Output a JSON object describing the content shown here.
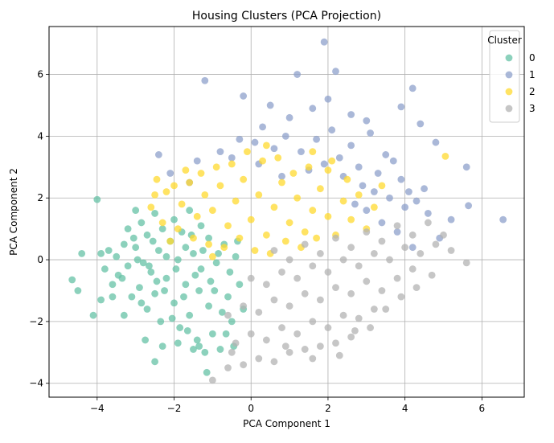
{
  "chart_data": {
    "type": "scatter",
    "title": "Housing Clusters (PCA Projection)",
    "xlabel": "PCA Component 1",
    "ylabel": "PCA Component 2",
    "xlim": [
      -5.25,
      7.1
    ],
    "ylim": [
      -4.45,
      7.55
    ],
    "xticks": [
      -4,
      -2,
      0,
      2,
      4,
      6
    ],
    "yticks": [
      -4,
      -2,
      0,
      2,
      4,
      6
    ],
    "xtick_labels": [
      "−4",
      "−2",
      "0",
      "2",
      "4",
      "6"
    ],
    "ytick_labels": [
      "−4",
      "−2",
      "0",
      "2",
      "4",
      "6"
    ],
    "grid": true,
    "legend": {
      "title": "Cluster",
      "placement": "top-right"
    },
    "series": [
      {
        "name": "0",
        "color": "#66c2a5",
        "points": [
          [
            -4.0,
            1.95
          ],
          [
            -4.65,
            -0.65
          ],
          [
            -4.4,
            0.2
          ],
          [
            -4.5,
            -1.0
          ],
          [
            -4.1,
            -1.8
          ],
          [
            -3.9,
            0.2
          ],
          [
            -3.8,
            -0.3
          ],
          [
            -3.7,
            0.3
          ],
          [
            -3.6,
            -0.8
          ],
          [
            -3.5,
            0.1
          ],
          [
            -3.45,
            -0.5
          ],
          [
            -3.3,
            0.5
          ],
          [
            -3.2,
            -0.2
          ],
          [
            -3.1,
            -1.2
          ],
          [
            -3.0,
            1.6
          ],
          [
            -3.0,
            0.4
          ],
          [
            -2.9,
            -0.9
          ],
          [
            -2.85,
            1.2
          ],
          [
            -2.8,
            -0.1
          ],
          [
            -2.7,
            -1.6
          ],
          [
            -2.7,
            0.8
          ],
          [
            -2.6,
            -0.4
          ],
          [
            -2.5,
            1.5
          ],
          [
            -2.5,
            -1.1
          ],
          [
            -2.4,
            0.3
          ],
          [
            -2.35,
            -2.0
          ],
          [
            -2.3,
            1.0
          ],
          [
            -2.2,
            -0.6
          ],
          [
            -2.1,
            0.6
          ],
          [
            -2.0,
            -1.4
          ],
          [
            -2.0,
            1.3
          ],
          [
            -1.9,
            0.0
          ],
          [
            -1.85,
            -2.2
          ],
          [
            -1.8,
            0.9
          ],
          [
            -1.7,
            -0.8
          ],
          [
            -1.6,
            1.6
          ],
          [
            -1.6,
            -1.8
          ],
          [
            -1.5,
            0.2
          ],
          [
            -1.4,
            -2.6
          ],
          [
            -1.3,
            1.1
          ],
          [
            -1.3,
            -0.3
          ],
          [
            -1.2,
            -3.0
          ],
          [
            -1.1,
            0.7
          ],
          [
            -1.1,
            -1.5
          ],
          [
            -1.0,
            -2.4
          ],
          [
            -0.9,
            -0.1
          ],
          [
            -0.8,
            -2.9
          ],
          [
            -0.7,
            0.5
          ],
          [
            -0.6,
            -1.2
          ],
          [
            -0.5,
            -2.0
          ],
          [
            -0.4,
            0.1
          ],
          [
            -0.3,
            -0.8
          ],
          [
            -0.2,
            -1.6
          ],
          [
            -2.75,
            -2.6
          ],
          [
            -2.3,
            -2.8
          ],
          [
            -2.5,
            -3.3
          ],
          [
            -1.9,
            -2.7
          ],
          [
            -1.15,
            -3.65
          ],
          [
            -3.3,
            -1.8
          ],
          [
            -3.6,
            -1.2
          ],
          [
            -3.9,
            -1.3
          ],
          [
            -3.2,
            1.0
          ],
          [
            -2.95,
            0.0
          ],
          [
            -2.65,
            -0.2
          ],
          [
            -2.45,
            -0.7
          ],
          [
            -2.2,
            0.1
          ],
          [
            -1.95,
            -0.3
          ],
          [
            -1.7,
            0.4
          ],
          [
            -1.45,
            -0.5
          ],
          [
            -1.25,
            0.3
          ],
          [
            -1.05,
            -0.7
          ],
          [
            -0.85,
            0.2
          ],
          [
            -3.35,
            -0.6
          ],
          [
            -3.05,
            0.7
          ],
          [
            -2.85,
            -1.4
          ],
          [
            -2.55,
            0.6
          ],
          [
            -2.25,
            -1.0
          ],
          [
            -1.75,
            -1.2
          ],
          [
            -1.55,
            0.8
          ],
          [
            -1.35,
            -1.0
          ],
          [
            -0.95,
            -1.0
          ],
          [
            -0.75,
            -1.7
          ],
          [
            -0.55,
            -0.4
          ],
          [
            -0.35,
            0.6
          ],
          [
            -2.05,
            -1.9
          ],
          [
            -1.65,
            -2.3
          ],
          [
            -1.5,
            -2.9
          ],
          [
            -1.35,
            -2.8
          ],
          [
            -0.65,
            -2.4
          ],
          [
            -0.45,
            -2.8
          ]
        ]
      },
      {
        "name": "1",
        "color": "#8da0cb",
        "points": [
          [
            -1.2,
            5.8
          ],
          [
            1.2,
            6.0
          ],
          [
            1.9,
            7.05
          ],
          [
            2.2,
            6.1
          ],
          [
            -0.2,
            5.3
          ],
          [
            0.5,
            5.0
          ],
          [
            1.6,
            4.9
          ],
          [
            2.6,
            4.7
          ],
          [
            3.0,
            4.5
          ],
          [
            3.9,
            4.95
          ],
          [
            4.2,
            5.55
          ],
          [
            4.4,
            4.4
          ],
          [
            5.6,
            3.0
          ],
          [
            5.65,
            1.75
          ],
          [
            6.55,
            1.3
          ],
          [
            -2.4,
            3.4
          ],
          [
            -2.1,
            2.8
          ],
          [
            -1.4,
            3.2
          ],
          [
            -0.8,
            3.5
          ],
          [
            -0.3,
            3.9
          ],
          [
            0.1,
            3.8
          ],
          [
            0.6,
            3.6
          ],
          [
            0.9,
            4.0
          ],
          [
            1.3,
            3.5
          ],
          [
            1.7,
            3.9
          ],
          [
            2.1,
            4.2
          ],
          [
            2.3,
            3.3
          ],
          [
            2.6,
            3.7
          ],
          [
            2.8,
            3.0
          ],
          [
            3.1,
            4.1
          ],
          [
            3.3,
            2.8
          ],
          [
            3.5,
            3.4
          ],
          [
            3.7,
            3.2
          ],
          [
            3.9,
            2.6
          ],
          [
            4.1,
            2.2
          ],
          [
            4.3,
            1.9
          ],
          [
            4.5,
            2.3
          ],
          [
            4.6,
            1.5
          ],
          [
            4.8,
            3.8
          ],
          [
            4.9,
            0.7
          ],
          [
            5.2,
            1.3
          ],
          [
            3.2,
            2.2
          ],
          [
            3.6,
            2.0
          ],
          [
            2.9,
            2.4
          ],
          [
            1.5,
            2.9
          ],
          [
            0.8,
            2.7
          ],
          [
            0.2,
            3.1
          ],
          [
            1.0,
            4.6
          ],
          [
            0.3,
            4.3
          ],
          [
            2.0,
            5.2
          ],
          [
            -0.5,
            3.3
          ],
          [
            4.0,
            1.7
          ],
          [
            3.4,
            1.2
          ],
          [
            3.8,
            0.9
          ],
          [
            2.7,
            1.8
          ],
          [
            4.2,
            0.4
          ],
          [
            3.0,
            1.6
          ],
          [
            2.4,
            2.7
          ],
          [
            1.9,
            3.1
          ],
          [
            -1.6,
            2.5
          ]
        ]
      },
      {
        "name": "2",
        "color": "#ffd92f",
        "points": [
          [
            5.05,
            3.35
          ],
          [
            -2.45,
            2.6
          ],
          [
            -2.2,
            2.2
          ],
          [
            -2.6,
            1.7
          ],
          [
            -2.0,
            2.4
          ],
          [
            -1.8,
            1.8
          ],
          [
            -1.6,
            2.5
          ],
          [
            -1.4,
            1.4
          ],
          [
            -1.2,
            2.1
          ],
          [
            -1.0,
            1.6
          ],
          [
            -0.8,
            2.4
          ],
          [
            -0.6,
            1.1
          ],
          [
            -0.4,
            1.9
          ],
          [
            -0.2,
            2.6
          ],
          [
            0.0,
            1.3
          ],
          [
            0.2,
            2.1
          ],
          [
            0.4,
            0.8
          ],
          [
            0.6,
            1.7
          ],
          [
            0.8,
            2.5
          ],
          [
            1.0,
            1.2
          ],
          [
            1.2,
            2.0
          ],
          [
            1.4,
            0.9
          ],
          [
            1.6,
            1.6
          ],
          [
            1.8,
            2.3
          ],
          [
            2.0,
            1.4
          ],
          [
            2.2,
            0.8
          ],
          [
            2.4,
            1.9
          ],
          [
            2.6,
            1.3
          ],
          [
            2.8,
            2.1
          ],
          [
            3.0,
            1.0
          ],
          [
            -1.9,
            1.0
          ],
          [
            -1.5,
            0.7
          ],
          [
            -1.1,
            0.5
          ],
          [
            -0.7,
            0.4
          ],
          [
            -0.3,
            0.7
          ],
          [
            0.1,
            0.3
          ],
          [
            0.5,
            0.2
          ],
          [
            0.9,
            0.6
          ],
          [
            1.3,
            0.4
          ],
          [
            1.7,
            0.7
          ],
          [
            -2.3,
            1.2
          ],
          [
            -2.1,
            0.6
          ],
          [
            -0.9,
            3.0
          ],
          [
            -0.5,
            3.1
          ],
          [
            0.3,
            3.2
          ],
          [
            0.7,
            3.3
          ],
          [
            1.1,
            2.8
          ],
          [
            1.5,
            3.0
          ],
          [
            2.0,
            2.9
          ],
          [
            -1.3,
            2.8
          ],
          [
            -1.7,
            2.9
          ],
          [
            -2.5,
            2.1
          ],
          [
            2.5,
            2.6
          ],
          [
            3.2,
            1.7
          ],
          [
            3.4,
            2.4
          ],
          [
            -0.1,
            3.5
          ],
          [
            0.4,
            3.7
          ],
          [
            1.6,
            3.5
          ],
          [
            2.1,
            3.2
          ],
          [
            -1.0,
            0.1
          ]
        ]
      },
      {
        "name": "3",
        "color": "#b3b3b3",
        "points": [
          [
            -1.0,
            -3.9
          ],
          [
            -0.6,
            -3.5
          ],
          [
            -0.2,
            -3.4
          ],
          [
            0.2,
            -3.2
          ],
          [
            0.6,
            -3.3
          ],
          [
            1.0,
            -3.0
          ],
          [
            1.4,
            -2.9
          ],
          [
            1.8,
            -2.8
          ],
          [
            2.2,
            -2.7
          ],
          [
            2.6,
            -2.5
          ],
          [
            -0.4,
            -2.7
          ],
          [
            0.0,
            -2.4
          ],
          [
            0.4,
            -2.6
          ],
          [
            0.8,
            -2.2
          ],
          [
            1.2,
            -2.4
          ],
          [
            1.6,
            -2.0
          ],
          [
            2.0,
            -2.2
          ],
          [
            2.4,
            -1.8
          ],
          [
            2.8,
            -1.9
          ],
          [
            3.2,
            -1.6
          ],
          [
            -0.6,
            -1.8
          ],
          [
            -0.2,
            -1.5
          ],
          [
            0.2,
            -1.7
          ],
          [
            0.6,
            -1.3
          ],
          [
            1.0,
            -1.5
          ],
          [
            1.4,
            -1.1
          ],
          [
            1.8,
            -1.3
          ],
          [
            2.2,
            -0.9
          ],
          [
            2.6,
            -1.1
          ],
          [
            3.0,
            -0.7
          ],
          [
            3.4,
            -1.0
          ],
          [
            3.8,
            -0.6
          ],
          [
            4.2,
            -0.3
          ],
          [
            0.0,
            -0.6
          ],
          [
            0.4,
            -0.8
          ],
          [
            0.8,
            -0.4
          ],
          [
            1.2,
            -0.6
          ],
          [
            1.6,
            -0.2
          ],
          [
            2.0,
            -0.4
          ],
          [
            2.4,
            0.0
          ],
          [
            2.8,
            -0.2
          ],
          [
            3.2,
            0.2
          ],
          [
            3.6,
            0.0
          ],
          [
            4.0,
            0.4
          ],
          [
            4.4,
            0.2
          ],
          [
            4.8,
            0.5
          ],
          [
            5.2,
            0.3
          ],
          [
            5.6,
            -0.1
          ],
          [
            0.6,
            0.3
          ],
          [
            1.0,
            0.0
          ],
          [
            1.4,
            0.5
          ],
          [
            1.8,
            0.2
          ],
          [
            2.2,
            0.7
          ],
          [
            2.6,
            0.4
          ],
          [
            3.0,
            0.9
          ],
          [
            3.4,
            0.6
          ],
          [
            3.8,
            1.1
          ],
          [
            4.2,
            0.8
          ],
          [
            4.6,
            1.2
          ],
          [
            5.0,
            0.8
          ],
          [
            2.7,
            -2.3
          ],
          [
            3.1,
            -2.2
          ],
          [
            3.5,
            -1.6
          ],
          [
            3.9,
            -1.2
          ],
          [
            4.3,
            -0.9
          ],
          [
            -0.5,
            -3.0
          ],
          [
            0.9,
            -2.8
          ],
          [
            1.6,
            -3.2
          ],
          [
            2.3,
            -3.1
          ],
          [
            4.7,
            -0.5
          ]
        ]
      }
    ]
  }
}
